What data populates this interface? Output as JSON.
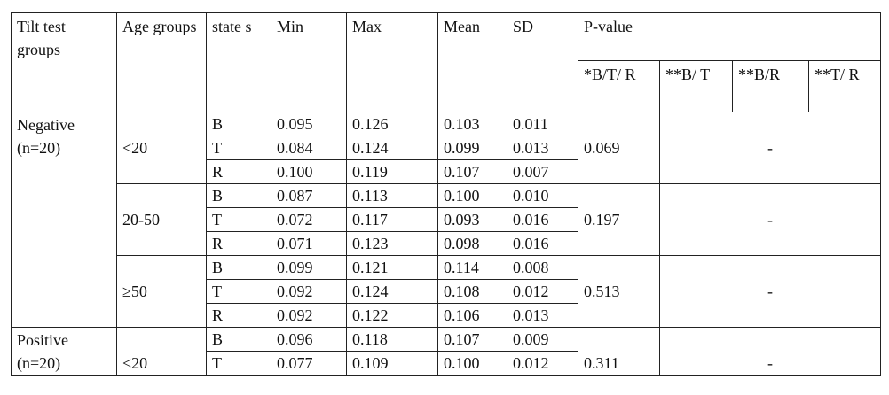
{
  "headers": {
    "tilt_groups": "Tilt test groups",
    "age_groups": "Age groups",
    "states": "state s",
    "min": "Min",
    "max": "Max",
    "mean": "Mean",
    "sd": "SD",
    "p_value": "P-value",
    "p_sub": [
      "*B/T/ R",
      "**B/ T",
      "**B/R",
      "**T/ R"
    ]
  },
  "groups": [
    {
      "label": "Negative (n=20)",
      "ages": [
        {
          "age": "<20",
          "p": "0.069",
          "other": "-",
          "rows": [
            {
              "state": "B",
              "min": "0.095",
              "max": "0.126",
              "mean": "0.103",
              "sd": "0.011"
            },
            {
              "state": "T",
              "min": "0.084",
              "max": "0.124",
              "mean": "0.099",
              "sd": "0.013"
            },
            {
              "state": "R",
              "min": "0.100",
              "max": "0.119",
              "mean": "0.107",
              "sd": "0.007"
            }
          ]
        },
        {
          "age": "20-50",
          "p": "0.197",
          "other": "-",
          "rows": [
            {
              "state": "B",
              "min": "0.087",
              "max": "0.113",
              "mean": "0.100",
              "sd": "0.010"
            },
            {
              "state": "T",
              "min": "0.072",
              "max": "0.117",
              "mean": "0.093",
              "sd": "0.016"
            },
            {
              "state": "R",
              "min": "0.071",
              "max": "0.123",
              "mean": "0.098",
              "sd": "0.016"
            }
          ]
        },
        {
          "age": "≥50",
          "p": "0.513",
          "other": "-",
          "rows": [
            {
              "state": "B",
              "min": "0.099",
              "max": "0.121",
              "mean": "0.114",
              "sd": "0.008"
            },
            {
              "state": "T",
              "min": "0.092",
              "max": "0.124",
              "mean": "0.108",
              "sd": "0.012"
            },
            {
              "state": "R",
              "min": "0.092",
              "max": "0.122",
              "mean": "0.106",
              "sd": "0.013"
            }
          ]
        }
      ]
    },
    {
      "label": "Positive (n=20)",
      "ages": [
        {
          "age": "<20",
          "p": "0.311",
          "other": "-",
          "rows": [
            {
              "state": "B",
              "min": "0.096",
              "max": "0.118",
              "mean": "0.107",
              "sd": "0.009"
            },
            {
              "state": "T",
              "min": "0.077",
              "max": "0.109",
              "mean": "0.100",
              "sd": "0.012"
            }
          ]
        }
      ]
    }
  ]
}
